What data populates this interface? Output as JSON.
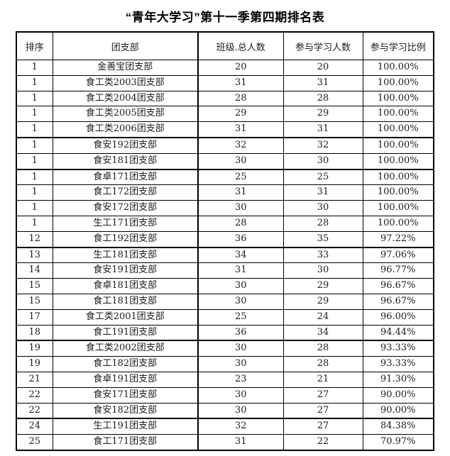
{
  "title": "“青年大学习”第十一季第四期排名表",
  "table": {
    "headers": [
      "排序",
      "团支部",
      "班级.总人数",
      "参与学习人数",
      "参与学习比例"
    ],
    "rows": [
      [
        "1",
        "金善宝团支部",
        "20",
        "20",
        "100.00%"
      ],
      [
        "1",
        "食工类2003团支部",
        "31",
        "31",
        "100.00%"
      ],
      [
        "1",
        "食工类2004团支部",
        "28",
        "28",
        "100.00%"
      ],
      [
        "1",
        "食工类2005团支部",
        "29",
        "29",
        "100.00%"
      ],
      [
        "1",
        "食工类2006团支部",
        "31",
        "31",
        "100.00%"
      ],
      [
        "1",
        "食安192团支部",
        "32",
        "32",
        "100.00%"
      ],
      [
        "1",
        "食安181团支部",
        "30",
        "30",
        "100.00%"
      ],
      [
        "1",
        "食卓171团支部",
        "25",
        "25",
        "100.00%"
      ],
      [
        "1",
        "食工172团支部",
        "31",
        "31",
        "100.00%"
      ],
      [
        "1",
        "食安172团支部",
        "30",
        "30",
        "100.00%"
      ],
      [
        "1",
        "生工171团支部",
        "28",
        "28",
        "100.00%"
      ],
      [
        "12",
        "食工192团支部",
        "36",
        "35",
        "97.22%"
      ],
      [
        "13",
        "生工181团支部",
        "34",
        "33",
        "97.06%"
      ],
      [
        "14",
        "食安191团支部",
        "31",
        "30",
        "96.77%"
      ],
      [
        "15",
        "食卓181团支部",
        "30",
        "29",
        "96.67%"
      ],
      [
        "15",
        "食工181团支部",
        "30",
        "29",
        "96.67%"
      ],
      [
        "17",
        "食工类2001团支部",
        "25",
        "24",
        "96.00%"
      ],
      [
        "18",
        "食工191团支部",
        "36",
        "34",
        "94.44%"
      ],
      [
        "19",
        "食工类2002团支部",
        "30",
        "28",
        "93.33%"
      ],
      [
        "19",
        "食工182团支部",
        "30",
        "28",
        "93.33%"
      ],
      [
        "21",
        "食卓191团支部",
        "23",
        "21",
        "91.30%"
      ],
      [
        "22",
        "食安171团支部",
        "30",
        "27",
        "90.00%"
      ],
      [
        "22",
        "食安182团支部",
        "30",
        "27",
        "90.00%"
      ],
      [
        "24",
        "生工191团支部",
        "32",
        "27",
        "84.38%"
      ],
      [
        "25",
        "食工171团支部",
        "31",
        "22",
        "70.97%"
      ]
    ],
    "thick_after_rows": [
      5,
      7,
      12,
      18,
      23
    ]
  },
  "colors": {
    "background": "#ffffff",
    "border": "#000000",
    "text": "#1c1c1c"
  }
}
